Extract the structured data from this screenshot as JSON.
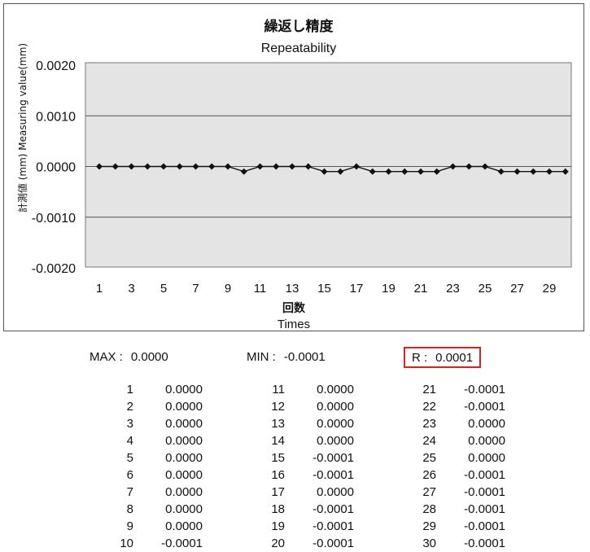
{
  "chart_data": {
    "type": "line",
    "title": "繰返し精度",
    "subtitle": "Repeatability",
    "xlabel": "回数",
    "xlabel_en": "Times",
    "ylabel": "計測値 (mm) Measuring value(mm)",
    "ylim": [
      -0.002,
      0.002
    ],
    "yticks": [
      "0.0020",
      "0.0010",
      "0.0000",
      "-0.0010",
      "-0.0020"
    ],
    "xtick_labels": [
      "1",
      "3",
      "5",
      "7",
      "9",
      "11",
      "13",
      "15",
      "17",
      "19",
      "21",
      "23",
      "25",
      "27",
      "29"
    ],
    "grid": true,
    "x": [
      1,
      2,
      3,
      4,
      5,
      6,
      7,
      8,
      9,
      10,
      11,
      12,
      13,
      14,
      15,
      16,
      17,
      18,
      19,
      20,
      21,
      22,
      23,
      24,
      25,
      26,
      27,
      28,
      29,
      30
    ],
    "values": [
      0,
      0,
      0,
      0,
      0,
      0,
      0,
      0,
      0,
      -0.0001,
      0,
      0,
      0,
      0,
      -0.0001,
      -0.0001,
      0,
      -0.0001,
      -0.0001,
      -0.0001,
      -0.0001,
      -0.0001,
      0,
      0,
      0,
      -0.0001,
      -0.0001,
      -0.0001,
      -0.0001,
      -0.0001
    ]
  },
  "stats": {
    "max_label": "MAX :",
    "max_value": "0.0000",
    "min_label": "MIN :",
    "min_value": "-0.0001",
    "r_label": "R :",
    "r_value": "0.0001"
  },
  "table": [
    {
      "n": "1",
      "v": "0.0000"
    },
    {
      "n": "2",
      "v": "0.0000"
    },
    {
      "n": "3",
      "v": "0.0000"
    },
    {
      "n": "4",
      "v": "0.0000"
    },
    {
      "n": "5",
      "v": "0.0000"
    },
    {
      "n": "6",
      "v": "0.0000"
    },
    {
      "n": "7",
      "v": "0.0000"
    },
    {
      "n": "8",
      "v": "0.0000"
    },
    {
      "n": "9",
      "v": "0.0000"
    },
    {
      "n": "10",
      "v": "-0.0001"
    },
    {
      "n": "11",
      "v": "0.0000"
    },
    {
      "n": "12",
      "v": "0.0000"
    },
    {
      "n": "13",
      "v": "0.0000"
    },
    {
      "n": "14",
      "v": "0.0000"
    },
    {
      "n": "15",
      "v": "-0.0001"
    },
    {
      "n": "16",
      "v": "-0.0001"
    },
    {
      "n": "17",
      "v": "0.0000"
    },
    {
      "n": "18",
      "v": "-0.0001"
    },
    {
      "n": "19",
      "v": "-0.0001"
    },
    {
      "n": "20",
      "v": "-0.0001"
    },
    {
      "n": "21",
      "v": "-0.0001"
    },
    {
      "n": "22",
      "v": "-0.0001"
    },
    {
      "n": "23",
      "v": "0.0000"
    },
    {
      "n": "24",
      "v": "0.0000"
    },
    {
      "n": "25",
      "v": "0.0000"
    },
    {
      "n": "26",
      "v": "-0.0001"
    },
    {
      "n": "27",
      "v": "-0.0001"
    },
    {
      "n": "28",
      "v": "-0.0001"
    },
    {
      "n": "29",
      "v": "-0.0001"
    },
    {
      "n": "30",
      "v": "-0.0001"
    }
  ]
}
